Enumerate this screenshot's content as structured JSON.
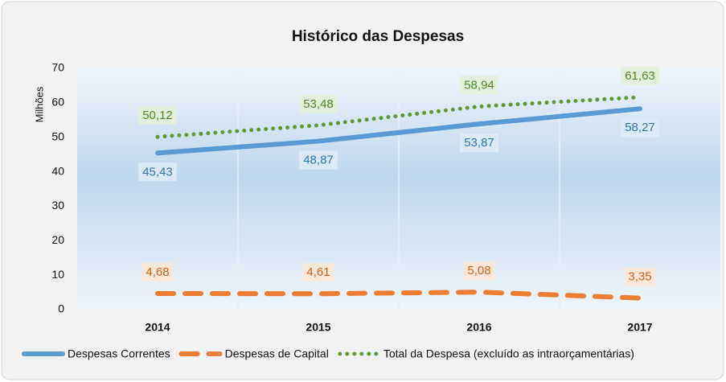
{
  "chart_data": {
    "type": "line",
    "title": "Histórico das Despesas",
    "y_label": "Milhões",
    "categories": [
      "2014",
      "2015",
      "2016",
      "2017"
    ],
    "ylim": [
      0,
      70
    ],
    "yticks": [
      0,
      10,
      20,
      30,
      40,
      50,
      60,
      70
    ],
    "series": [
      {
        "name": "Despesas Correntes",
        "color": "#5b9bd5",
        "style": "solid",
        "label_position": "below",
        "values": [
          45.43,
          48.87,
          53.87,
          58.27
        ],
        "value_labels": [
          "45,43",
          "48,87",
          "53,87",
          "58,27"
        ]
      },
      {
        "name": "Despesas de Capital",
        "color": "#ed7d31",
        "style": "dashed",
        "label_position": "above",
        "values": [
          4.68,
          4.61,
          5.08,
          3.35
        ],
        "value_labels": [
          "4,68",
          "4,61",
          "5,08",
          "3,35"
        ]
      },
      {
        "name": "Total da Despesa (excluído as intraorçamentárias)",
        "color": "#5e9a36",
        "style": "dotted",
        "label_position": "above",
        "values": [
          50.12,
          53.48,
          58.94,
          61.63
        ],
        "value_labels": [
          "50,12",
          "53,48",
          "58,94",
          "61,63"
        ]
      }
    ]
  }
}
